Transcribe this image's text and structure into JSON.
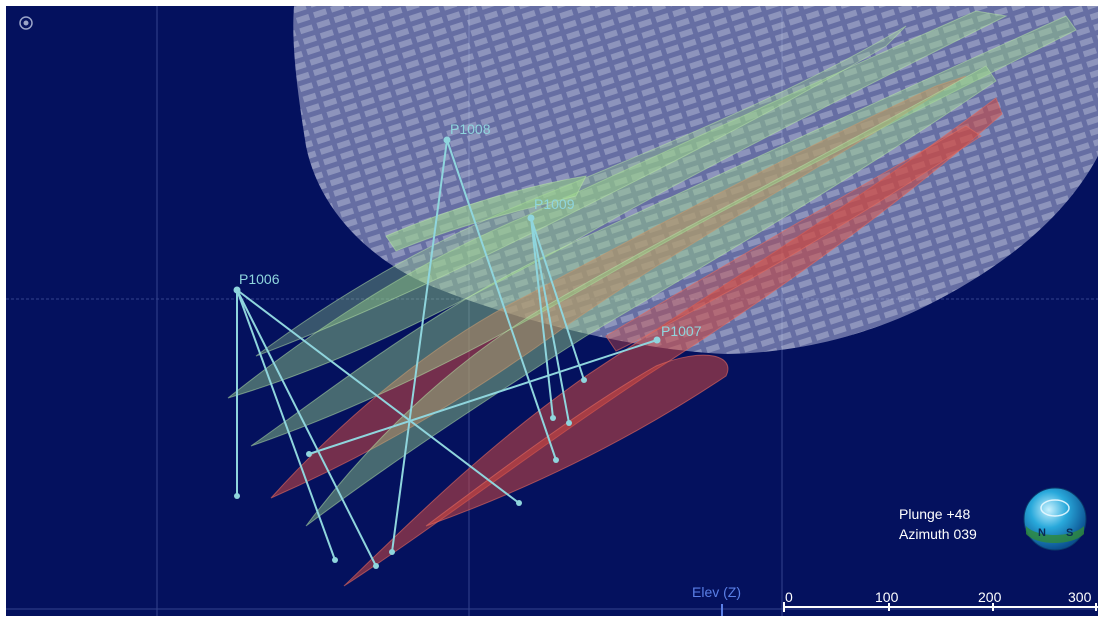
{
  "view": {
    "background_color": "#04115e",
    "grid_color": "#5a6db5"
  },
  "drillholes": [
    {
      "label": "P1008",
      "color": "#8fd5dd"
    },
    {
      "label": "P1009",
      "color": "#8fd5dd"
    },
    {
      "label": "P1006",
      "color": "#8fd5dd"
    },
    {
      "label": "P1007",
      "color": "#8fd5dd"
    }
  ],
  "surfaces": {
    "green_color": "#9ad48a",
    "red_color": "#d2483f",
    "mesh_color": "#d7dbf2"
  },
  "orientation": {
    "plunge": "Plunge +48",
    "azimuth": "Azimuth 039",
    "compass_icon": "globe-compass-icon",
    "compass_letters": [
      "N",
      "S"
    ]
  },
  "axis": {
    "label": "Elev (Z)"
  },
  "scale_bar": {
    "ticks": [
      "0",
      "100",
      "200",
      "300"
    ]
  },
  "icons": {
    "corner": "orientation-reset-icon"
  }
}
